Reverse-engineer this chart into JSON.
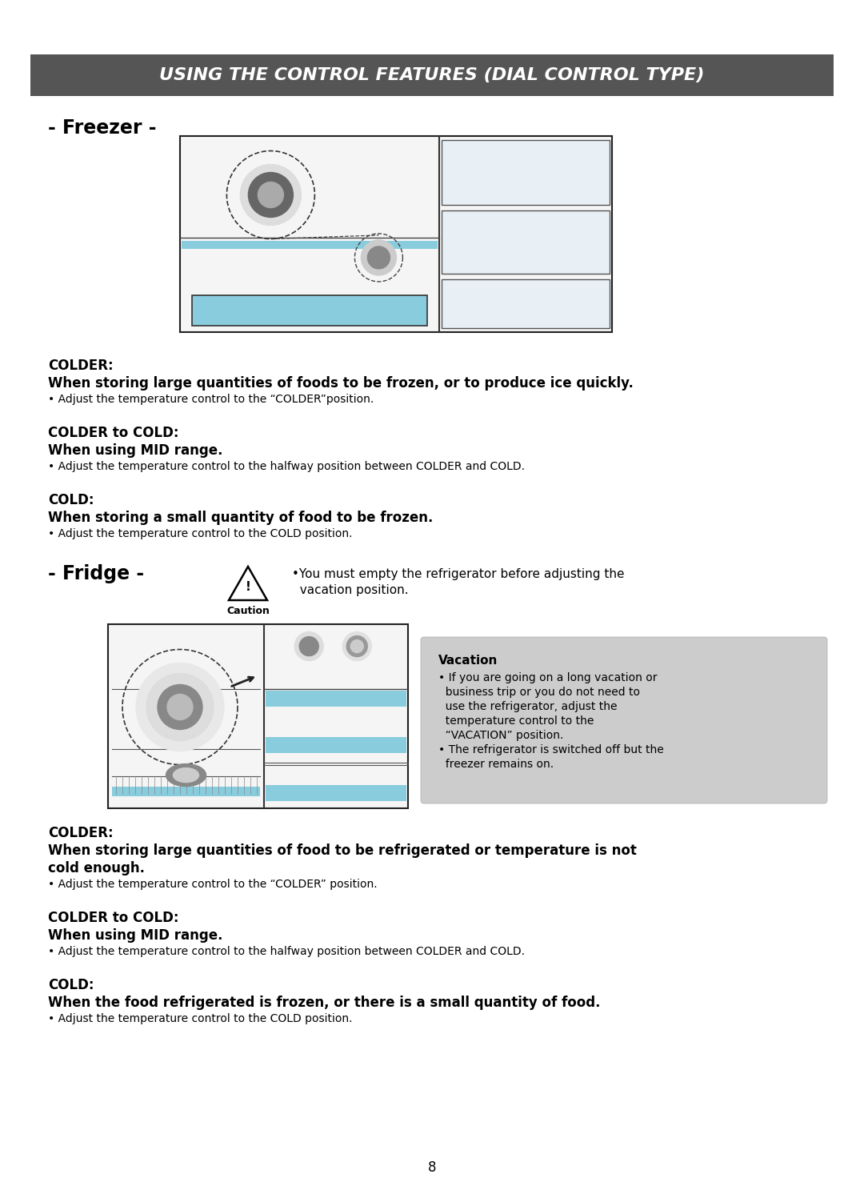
{
  "page_bg": "#ffffff",
  "header_bg": "#555555",
  "header_text": "USING THE CONTROL FEATURES (DIAL CONTROL TYPE)",
  "header_text_color": "#ffffff",
  "freezer_label": "- Freezer -",
  "fridge_label": "- Fridge -",
  "caution_label": "Caution",
  "caution_note_line1": "•You must empty the refrigerator before adjusting the",
  "caution_note_line2": "  vacation position.",
  "freezer_sections": [
    {
      "heading1": "COLDER:",
      "heading2": "When storing large quantities of foods to be frozen, or to produce ice quickly.",
      "bullet": "• Adjust the temperature control to the “COLDER”position."
    },
    {
      "heading1": "COLDER to COLD:",
      "heading2": "When using MID range.",
      "bullet": "• Adjust the temperature control to the halfway position between COLDER and COLD."
    },
    {
      "heading1": "COLD:",
      "heading2": "When storing a small quantity of food to be frozen.",
      "bullet": "• Adjust the temperature control to the COLD position."
    }
  ],
  "vacation_box_bg": "#cccccc",
  "vacation_title": "Vacation",
  "vacation_line1": "• If you are going on a long vacation or",
  "vacation_line2": "  business trip or you do not need to",
  "vacation_line3": "  use the refrigerator, adjust the",
  "vacation_line4": "  temperature control to the",
  "vacation_line5": "  “VACATION” position.",
  "vacation_line6": "• The refrigerator is switched off but the",
  "vacation_line7": "  freezer remains on.",
  "fridge_sections": [
    {
      "heading1": "COLDER:",
      "heading2a": "When storing large quantities of food to be refrigerated or temperature is not",
      "heading2b": "cold enough.",
      "bullet": "• Adjust the temperature control to the “COLDER” position."
    },
    {
      "heading1": "COLDER to COLD:",
      "heading2a": "When using MID range.",
      "heading2b": "",
      "bullet": "• Adjust the temperature control to the halfway position between COLDER and COLD."
    },
    {
      "heading1": "COLD:",
      "heading2a": "When the food refrigerated is frozen, or there is a small quantity of food.",
      "heading2b": "",
      "bullet": "• Adjust the temperature control to the COLD position."
    }
  ],
  "page_number": "8"
}
